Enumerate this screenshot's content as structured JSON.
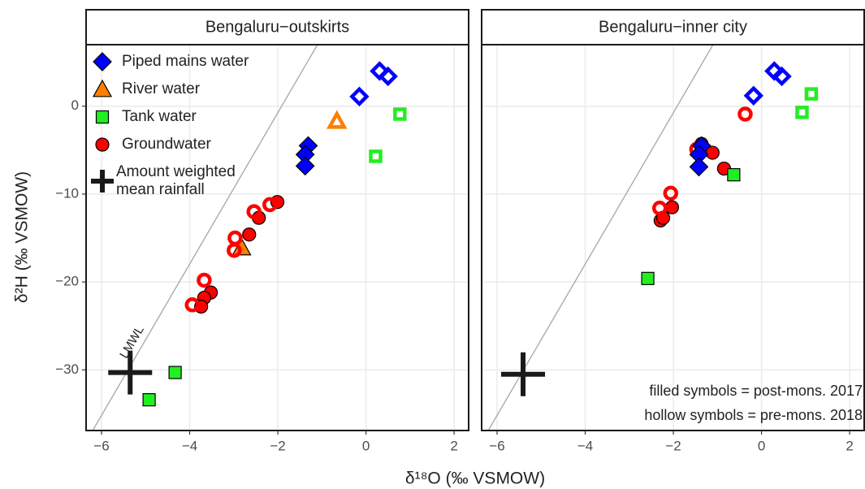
{
  "chart_data": {
    "type": "scatter",
    "x_label": "δ¹⁸O (‰ VSMOW)",
    "y_label": "δ²H (‰ VSMOW)",
    "xlim": [
      -6.35,
      2.33
    ],
    "ylim": [
      -36.9,
      7.0
    ],
    "xticks": [
      {
        "value": -6,
        "label": "−6"
      },
      {
        "value": -4,
        "label": "−4"
      },
      {
        "value": -2,
        "label": "−2"
      },
      0,
      2
    ],
    "yticks": [
      {
        "value": 0,
        "label": "0"
      },
      {
        "value": -10,
        "label": "−10"
      },
      {
        "value": -20,
        "label": "−20"
      },
      {
        "value": -30,
        "label": "−30"
      }
    ],
    "grid": true,
    "legend": [
      {
        "name": [
          "Piped mains water"
        ],
        "shape": "diamond",
        "color": "#0000ff"
      },
      {
        "name": [
          "River water"
        ],
        "shape": "triangle",
        "color": "#ff7f00"
      },
      {
        "name": [
          "Tank water"
        ],
        "shape": "square",
        "color": "#22ee22"
      },
      {
        "name": [
          "Groundwater"
        ],
        "shape": "circle",
        "color": "#ff0000"
      },
      {
        "name": [
          "Amount weighted",
          "mean rainfall"
        ],
        "shape": "cross",
        "color": "#1a1a1a"
      }
    ],
    "note": [
      "filled symbols = post-mons. 2017",
      "hollow symbols = pre-mons. 2018"
    ],
    "reference_line": {
      "label": "LMWL",
      "x": [
        -6.2,
        -1.1
      ],
      "y": [
        -36.9,
        7.0
      ]
    },
    "panels": [
      {
        "title": "Bengaluru−outskirts",
        "series": [
          {
            "group": 0,
            "hollow": false,
            "x": [
              -1.31,
              -1.38,
              -1.38
            ],
            "y": [
              -4.5,
              -5.5,
              -6.8
            ]
          },
          {
            "group": 0,
            "hollow": true,
            "x": [
              -0.15,
              0.31,
              0.5
            ],
            "y": [
              1.1,
              4.0,
              3.4
            ]
          },
          {
            "group": 1,
            "hollow": false,
            "x": [
              -2.82
            ],
            "y": [
              -16.1
            ]
          },
          {
            "group": 1,
            "hollow": true,
            "x": [
              -0.66
            ],
            "y": [
              -1.7
            ]
          },
          {
            "group": 2,
            "hollow": false,
            "x": [
              -4.33,
              -4.92
            ],
            "y": [
              -30.3,
              -33.4
            ]
          },
          {
            "group": 2,
            "hollow": true,
            "x": [
              0.22,
              0.77
            ],
            "y": [
              -5.7,
              -0.9
            ]
          },
          {
            "group": 3,
            "hollow": false,
            "x": [
              -2.01,
              -2.43,
              -2.65,
              -3.52,
              -3.67,
              -3.74
            ],
            "y": [
              -10.9,
              -12.7,
              -14.6,
              -21.2,
              -21.8,
              -22.8
            ]
          },
          {
            "group": 3,
            "hollow": true,
            "x": [
              -2.18,
              -2.54,
              -2.97,
              -2.99,
              -3.67,
              -3.94
            ],
            "y": [
              -11.2,
              -12.0,
              -15.0,
              -16.4,
              -19.8,
              -22.6
            ]
          },
          {
            "group": 4,
            "hollow": false,
            "x": [
              -5.35
            ],
            "y": [
              -30.3
            ]
          }
        ]
      },
      {
        "title": "Bengaluru−inner city",
        "series": [
          {
            "group": 3,
            "hollow": false,
            "x": [
              -1.36,
              -1.11,
              -0.85,
              -2.03,
              -2.29,
              -2.23
            ],
            "y": [
              -4.3,
              -5.3,
              -7.1,
              -11.5,
              -13.0,
              -12.7
            ]
          },
          {
            "group": 3,
            "hollow": true,
            "x": [
              -0.37,
              -1.47,
              -2.06,
              -2.31
            ],
            "y": [
              -0.9,
              -4.9,
              -9.9,
              -11.6
            ]
          },
          {
            "group": 0,
            "hollow": false,
            "x": [
              -1.36,
              -1.42,
              -1.42
            ],
            "y": [
              -4.5,
              -5.5,
              -6.9
            ]
          },
          {
            "group": 0,
            "hollow": true,
            "x": [
              -0.18,
              0.29,
              0.46
            ],
            "y": [
              1.2,
              4.0,
              3.4
            ]
          },
          {
            "group": 2,
            "hollow": false,
            "x": [
              -2.58,
              -0.63
            ],
            "y": [
              -19.6,
              -7.8
            ]
          },
          {
            "group": 2,
            "hollow": true,
            "x": [
              0.92,
              1.13
            ],
            "y": [
              -0.7,
              1.4
            ]
          },
          {
            "group": 4,
            "hollow": false,
            "x": [
              -5.41
            ],
            "y": [
              -30.5
            ]
          }
        ]
      }
    ]
  }
}
